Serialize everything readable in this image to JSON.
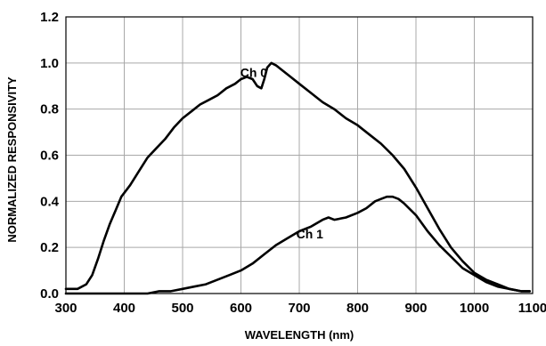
{
  "chart_data": {
    "type": "line",
    "title": "",
    "xlabel": "WAVELENGTH (nm)",
    "ylabel": "NORMALIZED RESPONSIVITY",
    "xlim": [
      300,
      1100
    ],
    "ylim": [
      0,
      1.2
    ],
    "x_ticks": [
      300,
      400,
      500,
      600,
      700,
      800,
      900,
      1000,
      1100
    ],
    "x_tick_labels": [
      "300",
      "400",
      "500",
      "600",
      "700",
      "800",
      "900",
      "1000",
      "1100"
    ],
    "y_ticks": [
      0,
      0.2,
      0.4,
      0.6,
      0.8,
      1.0,
      1.2
    ],
    "y_tick_labels": [
      "0.0",
      "0.2",
      "0.4",
      "0.6",
      "0.8",
      "1.0",
      "1.2"
    ],
    "grid": true,
    "legend": "none",
    "series": [
      {
        "name": "Ch 0",
        "label_at": [
          622,
          0.94
        ],
        "x": [
          300,
          320,
          335,
          345,
          355,
          365,
          375,
          385,
          395,
          410,
          425,
          440,
          455,
          470,
          485,
          500,
          515,
          530,
          545,
          560,
          575,
          590,
          600,
          610,
          620,
          628,
          635,
          640,
          645,
          652,
          660,
          670,
          685,
          700,
          720,
          740,
          760,
          780,
          800,
          820,
          840,
          860,
          880,
          900,
          920,
          940,
          960,
          980,
          1000,
          1020,
          1040,
          1060,
          1080,
          1095
        ],
        "y": [
          0.02,
          0.02,
          0.04,
          0.08,
          0.15,
          0.23,
          0.3,
          0.36,
          0.42,
          0.47,
          0.53,
          0.59,
          0.63,
          0.67,
          0.72,
          0.76,
          0.79,
          0.82,
          0.84,
          0.86,
          0.89,
          0.91,
          0.93,
          0.94,
          0.93,
          0.9,
          0.89,
          0.93,
          0.98,
          1.0,
          0.99,
          0.97,
          0.94,
          0.91,
          0.87,
          0.83,
          0.8,
          0.76,
          0.73,
          0.69,
          0.65,
          0.6,
          0.54,
          0.46,
          0.37,
          0.28,
          0.2,
          0.14,
          0.09,
          0.06,
          0.04,
          0.02,
          0.01,
          0.01
        ]
      },
      {
        "name": "Ch 1",
        "label_at": [
          718,
          0.24
        ],
        "x": [
          300,
          320,
          340,
          360,
          400,
          440,
          460,
          480,
          500,
          520,
          540,
          560,
          580,
          600,
          620,
          640,
          660,
          680,
          700,
          720,
          740,
          750,
          760,
          780,
          800,
          815,
          830,
          840,
          850,
          860,
          870,
          880,
          900,
          920,
          940,
          960,
          980,
          1000,
          1020,
          1040,
          1060,
          1080,
          1095
        ],
        "y": [
          0.0,
          0.0,
          0.0,
          0.0,
          0.0,
          0.0,
          0.01,
          0.01,
          0.02,
          0.03,
          0.04,
          0.06,
          0.08,
          0.1,
          0.13,
          0.17,
          0.21,
          0.24,
          0.27,
          0.29,
          0.32,
          0.33,
          0.32,
          0.33,
          0.35,
          0.37,
          0.4,
          0.41,
          0.42,
          0.42,
          0.41,
          0.39,
          0.34,
          0.27,
          0.21,
          0.16,
          0.11,
          0.08,
          0.05,
          0.03,
          0.02,
          0.01,
          0.01
        ]
      }
    ]
  }
}
